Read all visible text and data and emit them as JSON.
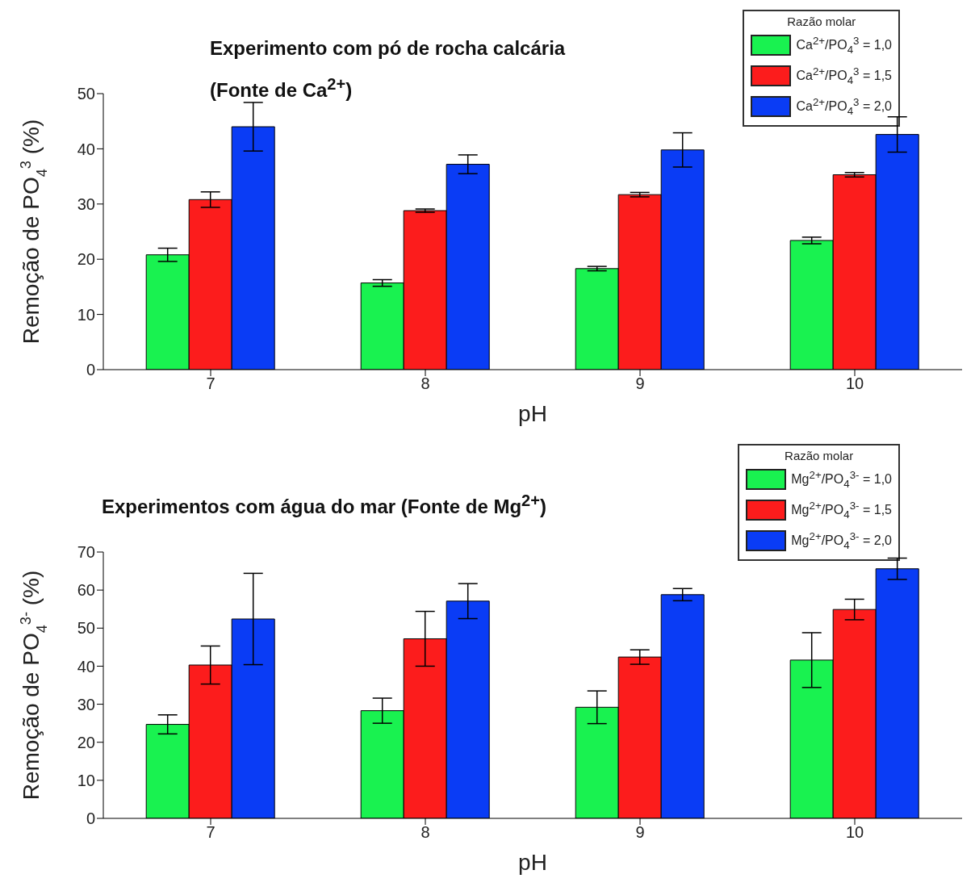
{
  "chart_data": [
    {
      "type": "bar",
      "title": "Experimento com pó de rocha calcária",
      "subtitle": "(Fonte de Ca$^{2+}$)",
      "xlabel": "pH",
      "ylabel": "Remoção de PO$_{4}$$^{3}$ (%)",
      "legend_title": "Razão molar",
      "legend": "top right",
      "grid": false,
      "categories": [
        "7",
        "8",
        "9",
        "10"
      ],
      "ylim": [
        0,
        50
      ],
      "yticks": [
        0,
        10,
        20,
        30,
        40,
        50
      ],
      "series": [
        {
          "name": "Ca$^{2+}$/PO$_{4}$$^{3}$ = 1,0",
          "color": "#19f250",
          "values": [
            20.8,
            15.7,
            18.3,
            23.4
          ],
          "errors": [
            1.2,
            0.6,
            0.4,
            0.6
          ]
        },
        {
          "name": "Ca$^{2+}$/PO$_{4}$$^{3}$ = 1,5",
          "color": "#fc1c1c",
          "values": [
            30.8,
            28.8,
            31.7,
            35.3
          ],
          "errors": [
            1.4,
            0.3,
            0.4,
            0.4
          ]
        },
        {
          "name": "Ca$^{2+}$/PO$_{4}$$^{3}$ = 2,0",
          "color": "#0a3cf5",
          "values": [
            44.0,
            37.2,
            39.8,
            42.6
          ],
          "errors": [
            4.4,
            1.7,
            3.1,
            3.2
          ]
        }
      ]
    },
    {
      "type": "bar",
      "title": "Experimentos com água do mar (Fonte de Mg$^{2+}$)",
      "xlabel": "pH",
      "ylabel": "Remoção de PO$_{4}$$^{3-}$ (%)",
      "legend_title": "Razão molar",
      "legend": "top right",
      "grid": false,
      "categories": [
        "7",
        "8",
        "9",
        "10"
      ],
      "ylim": [
        0,
        70
      ],
      "yticks": [
        0,
        10,
        20,
        30,
        40,
        50,
        60,
        70
      ],
      "series": [
        {
          "name": "Mg$^{2+}$/PO$_{4}$$^{3-}$ = 1,0",
          "color": "#19f250",
          "values": [
            24.7,
            28.3,
            29.2,
            41.6
          ],
          "errors": [
            2.5,
            3.3,
            4.3,
            7.2
          ]
        },
        {
          "name": "Mg$^{2+}$/PO$_{4}$$^{3-}$ = 1,5",
          "color": "#fc1c1c",
          "values": [
            40.3,
            47.2,
            42.4,
            54.9
          ],
          "errors": [
            5.0,
            7.2,
            1.9,
            2.7
          ]
        },
        {
          "name": "Mg$^{2+}$/PO$_{4}$$^{3-}$ = 2,0",
          "color": "#0a3cf5",
          "values": [
            52.4,
            57.1,
            58.8,
            65.6
          ],
          "errors": [
            12.0,
            4.6,
            1.6,
            2.8
          ]
        }
      ]
    }
  ]
}
